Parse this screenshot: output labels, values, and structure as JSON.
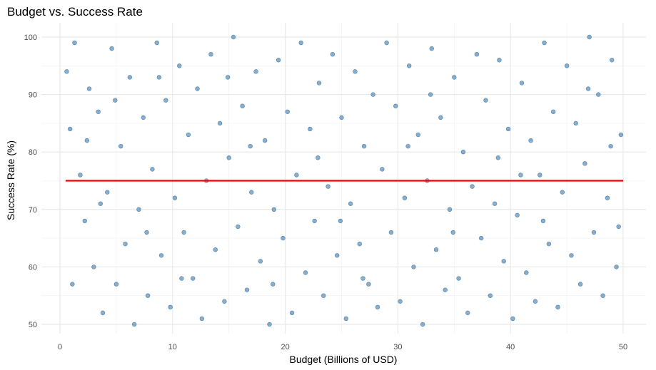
{
  "chart_data": {
    "type": "scatter",
    "title": "Budget vs. Success Rate",
    "xlabel": "Budget (Billions of USD)",
    "ylabel": "Success Rate (%)",
    "xlim": [
      0,
      50
    ],
    "ylim": [
      50,
      100
    ],
    "x_ticks": [
      0,
      10,
      20,
      30,
      40,
      50
    ],
    "y_ticks": [
      50,
      60,
      70,
      80,
      90,
      100
    ],
    "grid": true,
    "legend": "none",
    "point_color": "#4682b4",
    "reference_line": {
      "type": "horizontal",
      "y": 75,
      "color": "#ee0000"
    },
    "series": [
      {
        "values": [
          [
            0.6,
            94
          ],
          [
            0.9,
            84
          ],
          [
            1.3,
            99
          ],
          [
            1.8,
            76
          ],
          [
            2.2,
            68
          ],
          [
            2.6,
            91
          ],
          [
            3.0,
            60
          ],
          [
            3.4,
            87
          ],
          [
            3.8,
            52
          ],
          [
            4.2,
            73
          ],
          [
            4.6,
            98
          ],
          [
            5.0,
            57
          ],
          [
            5.4,
            81
          ],
          [
            5.8,
            64
          ],
          [
            6.2,
            93
          ],
          [
            6.6,
            50
          ],
          [
            7.0,
            70
          ],
          [
            7.4,
            86
          ],
          [
            7.8,
            55
          ],
          [
            8.2,
            77
          ],
          [
            8.6,
            99
          ],
          [
            9.0,
            62
          ],
          [
            9.4,
            89
          ],
          [
            9.8,
            53
          ],
          [
            10.2,
            72
          ],
          [
            10.6,
            95
          ],
          [
            11.0,
            66
          ],
          [
            11.4,
            83
          ],
          [
            11.8,
            58
          ],
          [
            12.2,
            91
          ],
          [
            12.6,
            51
          ],
          [
            13.0,
            75
          ],
          [
            13.4,
            97
          ],
          [
            13.8,
            63
          ],
          [
            14.2,
            85
          ],
          [
            14.6,
            54
          ],
          [
            15.0,
            79
          ],
          [
            15.4,
            100
          ],
          [
            15.8,
            67
          ],
          [
            16.2,
            88
          ],
          [
            16.6,
            56
          ],
          [
            17.0,
            73
          ],
          [
            17.4,
            94
          ],
          [
            17.8,
            61
          ],
          [
            18.2,
            82
          ],
          [
            18.6,
            50
          ],
          [
            19.0,
            70
          ],
          [
            19.4,
            96
          ],
          [
            19.8,
            65
          ],
          [
            20.2,
            87
          ],
          [
            20.6,
            52
          ],
          [
            21.0,
            76
          ],
          [
            21.4,
            99
          ],
          [
            21.8,
            59
          ],
          [
            22.2,
            84
          ],
          [
            22.6,
            68
          ],
          [
            23.0,
            92
          ],
          [
            23.4,
            55
          ],
          [
            23.8,
            74
          ],
          [
            24.2,
            97
          ],
          [
            24.6,
            62
          ],
          [
            25.0,
            86
          ],
          [
            25.4,
            51
          ],
          [
            25.8,
            71
          ],
          [
            26.2,
            94
          ],
          [
            26.6,
            64
          ],
          [
            27.0,
            81
          ],
          [
            27.4,
            57
          ],
          [
            27.8,
            90
          ],
          [
            28.2,
            53
          ],
          [
            28.6,
            77
          ],
          [
            29.0,
            99
          ],
          [
            29.4,
            66
          ],
          [
            29.8,
            88
          ],
          [
            30.2,
            54
          ],
          [
            30.6,
            72
          ],
          [
            31.0,
            95
          ],
          [
            31.4,
            60
          ],
          [
            31.8,
            83
          ],
          [
            32.2,
            50
          ],
          [
            32.6,
            75
          ],
          [
            33.0,
            98
          ],
          [
            33.4,
            63
          ],
          [
            33.8,
            86
          ],
          [
            34.2,
            56
          ],
          [
            34.6,
            70
          ],
          [
            35.0,
            93
          ],
          [
            35.4,
            58
          ],
          [
            35.8,
            80
          ],
          [
            36.2,
            52
          ],
          [
            36.6,
            74
          ],
          [
            37.0,
            97
          ],
          [
            37.4,
            65
          ],
          [
            37.8,
            89
          ],
          [
            38.2,
            55
          ],
          [
            38.6,
            71
          ],
          [
            39.0,
            96
          ],
          [
            39.4,
            61
          ],
          [
            39.8,
            84
          ],
          [
            40.2,
            51
          ],
          [
            40.6,
            69
          ],
          [
            41.0,
            92
          ],
          [
            41.4,
            59
          ],
          [
            41.8,
            82
          ],
          [
            42.2,
            54
          ],
          [
            42.6,
            76
          ],
          [
            43.0,
            99
          ],
          [
            43.4,
            64
          ],
          [
            43.8,
            87
          ],
          [
            44.2,
            53
          ],
          [
            44.6,
            73
          ],
          [
            45.0,
            95
          ],
          [
            45.4,
            62
          ],
          [
            45.8,
            85
          ],
          [
            46.2,
            57
          ],
          [
            46.6,
            78
          ],
          [
            47.0,
            100
          ],
          [
            47.4,
            66
          ],
          [
            47.8,
            90
          ],
          [
            48.2,
            55
          ],
          [
            48.6,
            72
          ],
          [
            49.0,
            96
          ],
          [
            49.4,
            60
          ],
          [
            49.8,
            83
          ],
          [
            1.1,
            57
          ],
          [
            2.4,
            82
          ],
          [
            4.9,
            89
          ],
          [
            7.7,
            66
          ],
          [
            10.8,
            58
          ],
          [
            14.9,
            93
          ],
          [
            18.9,
            57
          ],
          [
            22.9,
            79
          ],
          [
            26.9,
            58
          ],
          [
            30.9,
            81
          ],
          [
            34.9,
            66
          ],
          [
            38.9,
            79
          ],
          [
            42.9,
            68
          ],
          [
            46.9,
            91
          ],
          [
            49.6,
            67
          ],
          [
            3.6,
            71
          ],
          [
            8.8,
            93
          ],
          [
            16.9,
            81
          ],
          [
            24.9,
            68
          ],
          [
            32.9,
            90
          ],
          [
            40.9,
            76
          ],
          [
            48.9,
            81
          ]
        ]
      }
    ]
  }
}
